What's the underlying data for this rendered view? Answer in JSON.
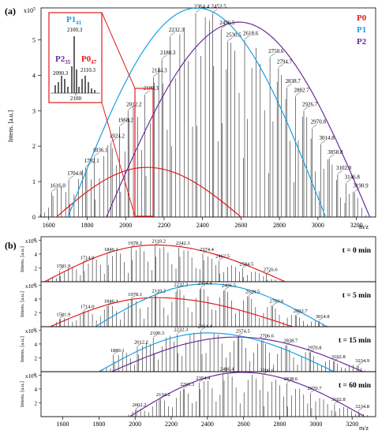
{
  "colors": {
    "P0": "#e31a1c",
    "P1": "#1ba1e2",
    "P2": "#6a2c9a",
    "spectrum": "#111111"
  },
  "panel_a": {
    "label": "(a)",
    "ylabel": "Intens. [a.u.]",
    "yexp": "x10",
    "yexp_pow": "5",
    "xlabel": "m/z",
    "legend": [
      {
        "name": "P0",
        "color": "#e31a1c"
      },
      {
        "name": "P1",
        "color": "#1ba1e2"
      },
      {
        "name": "P2",
        "color": "#6a2c9a"
      }
    ],
    "inset": {
      "labels": [
        {
          "base": "P1",
          "sub": "41",
          "color": "#1ba1e2"
        },
        {
          "base": "P2",
          "sub": "35",
          "color": "#6a2c9a"
        },
        {
          "base": "P0",
          "sub": "47",
          "color": "#e31a1c"
        }
      ],
      "peaks": [
        "2100.3",
        "2090.3",
        "2110.3"
      ],
      "tick": "2100"
    }
  },
  "panel_b": {
    "label": "(b)",
    "ylabel": "Intens. [a.u.]",
    "yexp": "x10",
    "yexp_pow": "6",
    "xlabel": "m/z"
  },
  "chart_data": [
    {
      "type": "line",
      "panel": "a",
      "xlabel": "m/z",
      "ylabel": "Intens. [a.u.]",
      "xlim": [
        1560,
        3300
      ],
      "ylim": [
        0,
        5.9
      ],
      "xticks": [
        1600,
        1800,
        2000,
        2200,
        2400,
        2600,
        2800,
        3000,
        3200
      ],
      "yticks": [
        0,
        1,
        2,
        3,
        4,
        5
      ],
      "peaks": [
        {
          "x": 1616.0,
          "y": 0.7,
          "label": "1616.0"
        },
        {
          "x": 1704.0,
          "y": 1.05,
          "label": "1704.0"
        },
        {
          "x": 1792.1,
          "y": 1.4,
          "label": "1792.1"
        },
        {
          "x": 1836.1,
          "y": 1.7,
          "label": "1836.1"
        },
        {
          "x": 1924.2,
          "y": 2.1,
          "label": "1924.2"
        },
        {
          "x": 1968.2,
          "y": 2.55,
          "label": "1968.2"
        },
        {
          "x": 2012.2,
          "y": 3.0,
          "label": "2012.2"
        },
        {
          "x": 2100.3,
          "y": 3.45,
          "label": "2100.3"
        },
        {
          "x": 2144.3,
          "y": 3.95,
          "label": "2144.3"
        },
        {
          "x": 2188.3,
          "y": 4.45,
          "label": "2188.3"
        },
        {
          "x": 2232.3,
          "y": 5.1,
          "label": "2232.3"
        },
        {
          "x": 2364.4,
          "y": 5.75,
          "label": "2364.4"
        },
        {
          "x": 2452.5,
          "y": 5.75,
          "label": "2452.5"
        },
        {
          "x": 2496.5,
          "y": 5.3,
          "label": "2496.5"
        },
        {
          "x": 2530.5,
          "y": 4.95,
          "label": "2530.5"
        },
        {
          "x": 2618.6,
          "y": 5.0,
          "label": "2618.6"
        },
        {
          "x": 2750.6,
          "y": 4.5,
          "label": "2750.6"
        },
        {
          "x": 2794.7,
          "y": 4.2,
          "label": "2794.7"
        },
        {
          "x": 2838.7,
          "y": 3.65,
          "label": "2838.7"
        },
        {
          "x": 2882.7,
          "y": 3.4,
          "label": "2882.7"
        },
        {
          "x": 2926.7,
          "y": 3.0,
          "label": "2926.7"
        },
        {
          "x": 2970.8,
          "y": 2.5,
          "label": "2970.8"
        },
        {
          "x": 3014.8,
          "y": 2.05,
          "label": "3014.8"
        },
        {
          "x": 3058.8,
          "y": 1.65,
          "label": "3058.8"
        },
        {
          "x": 3102.8,
          "y": 1.2,
          "label": "3102.8"
        },
        {
          "x": 3146.8,
          "y": 0.95,
          "label": "3146.8"
        },
        {
          "x": 3190.9,
          "y": 0.7,
          "label": "3190.9"
        }
      ],
      "envelopes": [
        {
          "name": "P0",
          "x0": 1640,
          "x1": 2600,
          "peak_x": 2110,
          "peak_y": 1.4
        },
        {
          "name": "P1",
          "x0": 1700,
          "x1": 3040,
          "peak_x": 2370,
          "peak_y": 5.9
        },
        {
          "name": "P2",
          "x0": 1900,
          "x1": 3270,
          "peak_x": 2590,
          "peak_y": 5.5
        }
      ]
    },
    {
      "type": "line",
      "panel": "b",
      "xlabel": "m/z",
      "xlim": [
        1480,
        3330
      ],
      "ylim": [
        0,
        6.5
      ],
      "xticks": [
        1600,
        1800,
        2000,
        2200,
        2400,
        2600,
        2800,
        3000,
        3200
      ],
      "yticks": [
        2,
        4,
        6
      ],
      "subplots": [
        {
          "time": "t = 0 min",
          "peaks": [
            {
              "x": 1581.9,
              "y": 1.6,
              "label": "1581.9"
            },
            {
              "x": 1714.0,
              "y": 2.8,
              "label": "1714.0"
            },
            {
              "x": 1846.1,
              "y": 4.0,
              "label": "1846.1"
            },
            {
              "x": 1978.2,
              "y": 4.9,
              "label": "1978.2"
            },
            {
              "x": 2110.2,
              "y": 5.2,
              "label": "2110.2"
            },
            {
              "x": 2242.3,
              "y": 4.9,
              "label": "2242.3"
            },
            {
              "x": 2374.4,
              "y": 4.0,
              "label": "2374.4"
            },
            {
              "x": 2462.5,
              "y": 3.0,
              "label": "2462.5"
            },
            {
              "x": 2594.5,
              "y": 1.9,
              "label": "2594.5"
            },
            {
              "x": 2726.6,
              "y": 1.1,
              "label": "2726.6"
            }
          ],
          "envelopes": [
            {
              "name": "P0",
              "x0": 1500,
              "x1": 2830,
              "peak_x": 2110,
              "peak_y": 5.3
            }
          ]
        },
        {
          "time": "t = 5 min",
          "peaks": [
            {
              "x": 1581.9,
              "y": 1.1,
              "label": "1581.9"
            },
            {
              "x": 1714.0,
              "y": 2.2,
              "label": "1714.0"
            },
            {
              "x": 1846.1,
              "y": 3.0,
              "label": "1846.1"
            },
            {
              "x": 1978.1,
              "y": 4.0,
              "label": "1978.1"
            },
            {
              "x": 2110.2,
              "y": 4.5,
              "label": "2110.2"
            },
            {
              "x": 2232.3,
              "y": 5.4,
              "label": "2232.3"
            },
            {
              "x": 2364.4,
              "y": 5.6,
              "label": "2364.4"
            },
            {
              "x": 2496.5,
              "y": 5.3,
              "label": "2496.5"
            },
            {
              "x": 2628.5,
              "y": 4.4,
              "label": "2628.5"
            },
            {
              "x": 2760.6,
              "y": 3.0,
              "label": "2760.6"
            },
            {
              "x": 2892.7,
              "y": 1.6,
              "label": "2892.7"
            },
            {
              "x": 3014.8,
              "y": 0.8,
              "label": "3014.8"
            }
          ],
          "envelopes": [
            {
              "name": "P0",
              "x0": 1530,
              "x1": 2870,
              "peak_x": 2110,
              "peak_y": 4.2
            },
            {
              "name": "P1",
              "x0": 1780,
              "x1": 3060,
              "peak_x": 2400,
              "peak_y": 6.2
            }
          ]
        },
        {
          "time": "t = 15 min",
          "peaks": [
            {
              "x": 1880.1,
              "y": 2.4,
              "label": "1880.1"
            },
            {
              "x": 2012.2,
              "y": 3.6,
              "label": "2012.2"
            },
            {
              "x": 2100.3,
              "y": 4.9,
              "label": "2100.3"
            },
            {
              "x": 2232.3,
              "y": 5.4,
              "label": "2232.3"
            },
            {
              "x": 2364.4,
              "y": 5.9,
              "label": "2364.4"
            },
            {
              "x": 2574.5,
              "y": 5.2,
              "label": "2574.5"
            },
            {
              "x": 2706.6,
              "y": 4.5,
              "label": "2706.6"
            },
            {
              "x": 2838.7,
              "y": 3.8,
              "label": "2838.7"
            },
            {
              "x": 2970.8,
              "y": 2.8,
              "label": "2970.8"
            },
            {
              "x": 3102.8,
              "y": 1.5,
              "label": "3102.8"
            },
            {
              "x": 3234.9,
              "y": 0.9,
              "label": "3234.9"
            }
          ],
          "envelopes": [
            {
              "name": "P1",
              "x0": 1800,
              "x1": 3100,
              "peak_x": 2400,
              "peak_y": 5.6
            },
            {
              "name": "P2",
              "x0": 1870,
              "x1": 3260,
              "peak_x": 2560,
              "peak_y": 5.0
            }
          ]
        },
        {
          "time": "t = 60 min",
          "peaks": [
            {
              "x": 2002.2,
              "y": 1.0,
              "label": "2002.2"
            },
            {
              "x": 2134.2,
              "y": 2.5,
              "label": "2134.2"
            },
            {
              "x": 2266.3,
              "y": 4.0,
              "label": "2266.3"
            },
            {
              "x": 2354.4,
              "y": 4.9,
              "label": "2354.4"
            },
            {
              "x": 2486.4,
              "y": 6.2,
              "label": "2486.4"
            },
            {
              "x": 2706.6,
              "y": 6.0,
              "label": "2706.6"
            },
            {
              "x": 2838.6,
              "y": 4.8,
              "label": "2838.6"
            },
            {
              "x": 2970.7,
              "y": 3.4,
              "label": "2970.7"
            },
            {
              "x": 3102.8,
              "y": 1.8,
              "label": "3102.8"
            },
            {
              "x": 3234.8,
              "y": 0.8,
              "label": "3234.8"
            }
          ],
          "envelopes": [
            {
              "name": "P2",
              "x0": 1970,
              "x1": 3270,
              "peak_x": 2590,
              "peak_y": 6.4
            }
          ]
        }
      ]
    }
  ]
}
